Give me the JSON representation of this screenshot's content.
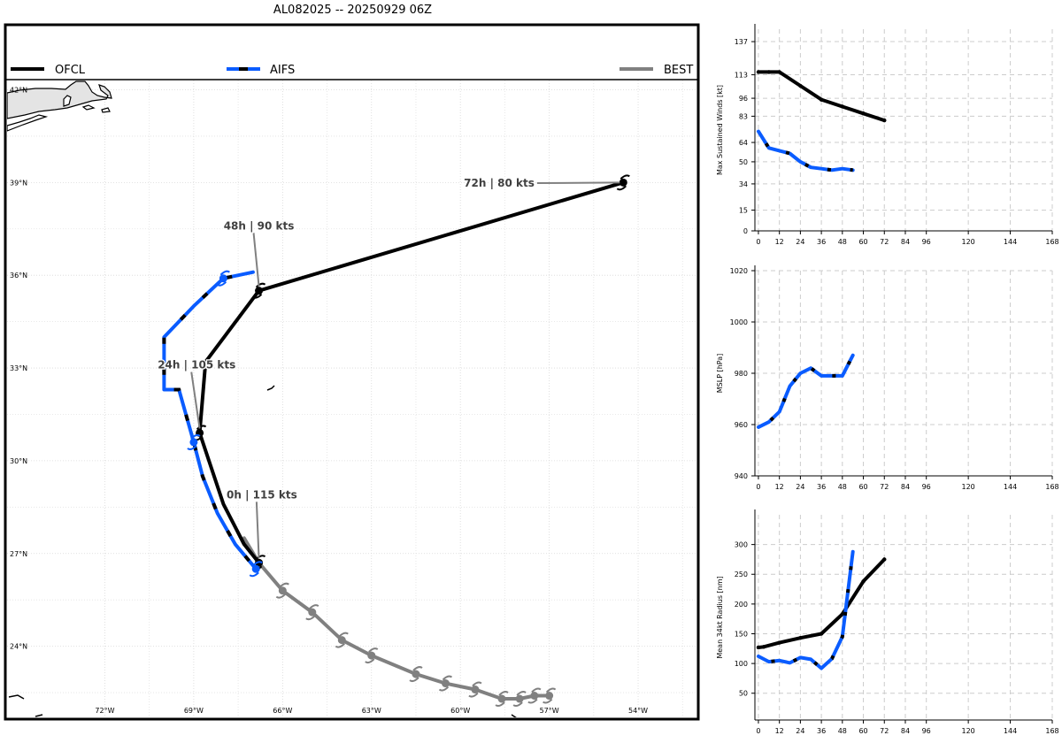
{
  "title": "AL082025 -- 20250929 06Z",
  "legend": [
    {
      "label": "OFCL",
      "color": "#000000"
    },
    {
      "label": "AIFS",
      "color": "#0a5cff"
    },
    {
      "label": "BEST",
      "color": "#808080"
    }
  ],
  "chart_data": [
    {
      "type": "line",
      "name": "track-map",
      "lat_labels": [
        "42°N",
        "39°N",
        "36°N",
        "33°N",
        "30°N",
        "27°N",
        "24°N"
      ],
      "lon_labels": [
        "72°W",
        "69°W",
        "66°W",
        "63°W",
        "60°W",
        "57°W",
        "54°W"
      ],
      "lon_range": [
        -75.3,
        -52.0
      ],
      "lat_range": [
        21.7,
        42.3
      ],
      "series": [
        {
          "name": "OFCL",
          "color": "#000000",
          "points": [
            [
              -66.8,
              26.7
            ],
            [
              -67.3,
              27.3
            ],
            [
              -68.0,
              28.6
            ],
            [
              -68.8,
              30.9
            ],
            [
              -68.6,
              33.2
            ],
            [
              -66.8,
              35.5
            ],
            [
              -54.5,
              39.0
            ]
          ]
        },
        {
          "name": "AIFS",
          "color": "#0a5cff",
          "points": [
            [
              -66.9,
              26.5
            ],
            [
              -67.6,
              27.3
            ],
            [
              -68.2,
              28.3
            ],
            [
              -68.7,
              29.5
            ],
            [
              -69.0,
              30.6
            ],
            [
              -69.5,
              32.3
            ],
            [
              -70.0,
              32.3
            ],
            [
              -70.0,
              34.0
            ],
            [
              -69.0,
              35.0
            ],
            [
              -68.0,
              35.9
            ],
            [
              -67.0,
              36.1
            ]
          ]
        },
        {
          "name": "BEST",
          "color": "#808080",
          "points": [
            [
              -67.3,
              27.5
            ],
            [
              -66.8,
              26.7
            ],
            [
              -66.0,
              25.8
            ],
            [
              -65.0,
              25.1
            ],
            [
              -64.0,
              24.2
            ],
            [
              -63.0,
              23.7
            ],
            [
              -61.5,
              23.1
            ],
            [
              -60.5,
              22.8
            ],
            [
              -59.5,
              22.6
            ],
            [
              -58.6,
              22.3
            ],
            [
              -58.0,
              22.3
            ],
            [
              -57.5,
              22.4
            ],
            [
              -57.0,
              22.4
            ]
          ]
        }
      ],
      "storm_symbols": [
        {
          "color": "#000000",
          "points": [
            [
              -66.8,
              26.7
            ],
            [
              -68.8,
              30.9
            ],
            [
              -66.8,
              35.5
            ],
            [
              -54.5,
              39.0
            ]
          ]
        },
        {
          "color": "#0a5cff",
          "points": [
            [
              -66.9,
              26.5
            ],
            [
              -69.0,
              30.6
            ],
            [
              -68.0,
              35.9
            ]
          ]
        },
        {
          "color": "#808080",
          "points": [
            [
              -66.0,
              25.8
            ],
            [
              -65.0,
              25.1
            ],
            [
              -64.0,
              24.2
            ],
            [
              -63.0,
              23.7
            ],
            [
              -61.5,
              23.1
            ],
            [
              -60.5,
              22.8
            ],
            [
              -59.5,
              22.6
            ],
            [
              -58.6,
              22.3
            ],
            [
              -58.0,
              22.3
            ],
            [
              -57.5,
              22.4
            ],
            [
              -57.0,
              22.4
            ]
          ]
        }
      ],
      "annotations": [
        {
          "text": "0h | 115 kts",
          "point": [
            -66.8,
            26.7
          ],
          "label_pos": [
            -66.7,
            28.9
          ]
        },
        {
          "text": "24h | 105 kts",
          "point": [
            -68.8,
            30.9
          ],
          "label_pos": [
            -68.9,
            33.1
          ]
        },
        {
          "text": "48h | 90 kts",
          "point": [
            -66.8,
            35.5
          ],
          "label_pos": [
            -66.8,
            37.6
          ]
        },
        {
          "text": "72h | 80 kts",
          "point": [
            -54.5,
            39.0
          ],
          "label_pos": [
            -57.5,
            38.98
          ]
        }
      ]
    },
    {
      "type": "line",
      "ylabel": "Max Sustained Winds [kt]",
      "xticks": [
        0,
        12,
        24,
        36,
        48,
        60,
        72,
        84,
        96,
        120,
        144,
        168
      ],
      "yticks": [
        0,
        15,
        34,
        50,
        64,
        83,
        96,
        113,
        137
      ],
      "xlim": [
        -2,
        168
      ],
      "ylim": [
        0,
        146
      ],
      "series": [
        {
          "name": "OFCL",
          "color": "#000000",
          "x": [
            0,
            6,
            12,
            24,
            36,
            48,
            60,
            72
          ],
          "y": [
            115,
            115,
            115,
            105,
            95,
            90,
            85,
            80
          ]
        },
        {
          "name": "AIFS",
          "color": "#0a5cff",
          "x": [
            0,
            6,
            12,
            18,
            24,
            30,
            36,
            42,
            48,
            54
          ],
          "y": [
            72,
            60,
            58,
            56,
            50,
            46,
            45,
            44,
            45,
            44
          ]
        }
      ]
    },
    {
      "type": "line",
      "ylabel": "MSLP [hPa]",
      "xticks": [
        0,
        12,
        24,
        36,
        48,
        60,
        72,
        84,
        96,
        120,
        144,
        168
      ],
      "yticks": [
        940,
        960,
        980,
        1000,
        1020
      ],
      "xlim": [
        -2,
        168
      ],
      "ylim": [
        940,
        1020
      ],
      "series": [
        {
          "name": "AIFS",
          "color": "#0a5cff",
          "x": [
            0,
            6,
            12,
            18,
            24,
            30,
            36,
            42,
            48,
            54
          ],
          "y": [
            959,
            961,
            965,
            975,
            980,
            982,
            979,
            979,
            979,
            987
          ]
        }
      ]
    },
    {
      "type": "line",
      "ylabel": "Mean 34kt Radius [nm]",
      "xticks": [
        0,
        12,
        24,
        36,
        48,
        60,
        72,
        84,
        96,
        120,
        144,
        168
      ],
      "yticks": [
        50,
        100,
        150,
        200,
        250,
        300
      ],
      "xlim": [
        -2,
        168
      ],
      "ylim": [
        5,
        350
      ],
      "series": [
        {
          "name": "OFCL",
          "color": "#000000",
          "x": [
            0,
            3,
            12,
            24,
            36,
            48,
            60,
            72
          ],
          "y": [
            127,
            128,
            135,
            143,
            150,
            183,
            238,
            275
          ]
        },
        {
          "name": "AIFS",
          "color": "#0a5cff",
          "x": [
            0,
            6,
            12,
            18,
            24,
            30,
            36,
            42,
            48,
            54
          ],
          "y": [
            112,
            103,
            105,
            101,
            110,
            107,
            92,
            108,
            145,
            288
          ]
        }
      ]
    }
  ]
}
